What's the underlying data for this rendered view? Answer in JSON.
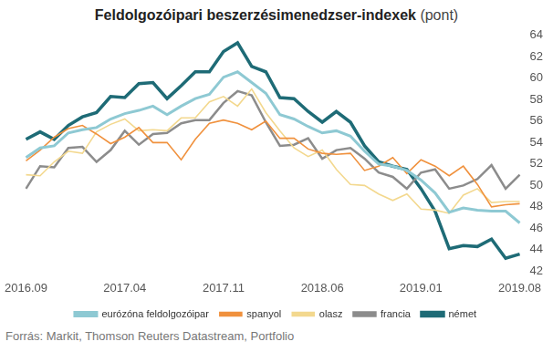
{
  "chart_data": {
    "type": "line",
    "title": "Feldolgozóipari beszerzésimenedzser-indexek",
    "subtitle": "(pont)",
    "source": "Forrás: Markit, Thomson Reuters Datastream, Portfolio",
    "categories": [
      "2016.09",
      null,
      null,
      null,
      null,
      null,
      null,
      "2017.04",
      null,
      null,
      null,
      null,
      null,
      null,
      "2017.11",
      null,
      null,
      null,
      null,
      null,
      null,
      "2018.06",
      null,
      null,
      null,
      null,
      null,
      null,
      "2019.01",
      null,
      null,
      null,
      null,
      null,
      null,
      "2019.08"
    ],
    "series": [
      {
        "name": "német",
        "color": "#1e6b76",
        "values": [
          54.3,
          55.0,
          54.3,
          55.6,
          56.4,
          56.8,
          58.3,
          58.2,
          59.5,
          59.6,
          58.1,
          59.3,
          60.6,
          60.6,
          62.5,
          63.3,
          61.1,
          60.6,
          58.2,
          58.1,
          56.9,
          55.9,
          56.9,
          55.9,
          53.7,
          52.2,
          51.8,
          51.5,
          49.7,
          47.6,
          44.1,
          44.4,
          44.3,
          45.0,
          43.2,
          43.6
        ]
      },
      {
        "name": "francia",
        "color": "#8c8c8c",
        "values": [
          49.7,
          51.8,
          51.7,
          53.5,
          53.6,
          52.2,
          53.3,
          55.1,
          53.8,
          54.8,
          54.9,
          55.8,
          56.1,
          56.1,
          57.7,
          58.8,
          58.4,
          55.9,
          53.7,
          53.8,
          54.4,
          52.5,
          53.3,
          53.5,
          52.5,
          51.2,
          50.8,
          49.7,
          51.2,
          51.5,
          49.7,
          50.0,
          50.6,
          51.9,
          49.7,
          51.0
        ]
      },
      {
        "name": "olasz",
        "color": "#f3d88e",
        "values": [
          51.0,
          50.9,
          52.2,
          53.2,
          53.0,
          55.0,
          55.7,
          56.2,
          55.1,
          55.2,
          55.1,
          56.3,
          56.3,
          57.8,
          58.3,
          57.4,
          59.0,
          56.8,
          55.1,
          53.5,
          52.7,
          53.3,
          51.5,
          50.1,
          50.0,
          49.2,
          48.6,
          49.2,
          47.8,
          47.7,
          47.4,
          49.1,
          49.7,
          48.4,
          48.5,
          48.5
        ]
      },
      {
        "name": "spanyol",
        "color": "#f0913d",
        "values": [
          52.3,
          53.3,
          54.5,
          55.3,
          55.6,
          54.8,
          53.9,
          54.5,
          55.4,
          54.0,
          54.0,
          52.4,
          54.3,
          55.8,
          56.1,
          55.8,
          55.2,
          56.0,
          54.4,
          54.4,
          53.4,
          53.0,
          52.9,
          53.0,
          51.4,
          51.8,
          52.6,
          51.1,
          52.4,
          51.8,
          50.9,
          51.8,
          50.1,
          48.0,
          48.2,
          48.3
        ]
      },
      {
        "name": "eurózóna feldolgozóipar",
        "color": "#8ec9d3",
        "values": [
          52.6,
          53.5,
          53.7,
          54.9,
          55.2,
          55.4,
          56.2,
          56.7,
          57.0,
          57.4,
          56.6,
          57.4,
          58.1,
          58.5,
          60.1,
          60.6,
          59.6,
          58.6,
          56.6,
          56.2,
          55.5,
          54.9,
          55.1,
          54.6,
          53.2,
          52.0,
          51.8,
          51.4,
          50.5,
          49.3,
          47.5,
          47.9,
          47.7,
          47.6,
          47.6,
          46.5
        ]
      }
    ],
    "ylim": [
      42,
      64
    ],
    "yticks": [
      42,
      44,
      46,
      48,
      50,
      52,
      54,
      56,
      58,
      60,
      62,
      64
    ],
    "grid": false,
    "legend": "bottom"
  }
}
